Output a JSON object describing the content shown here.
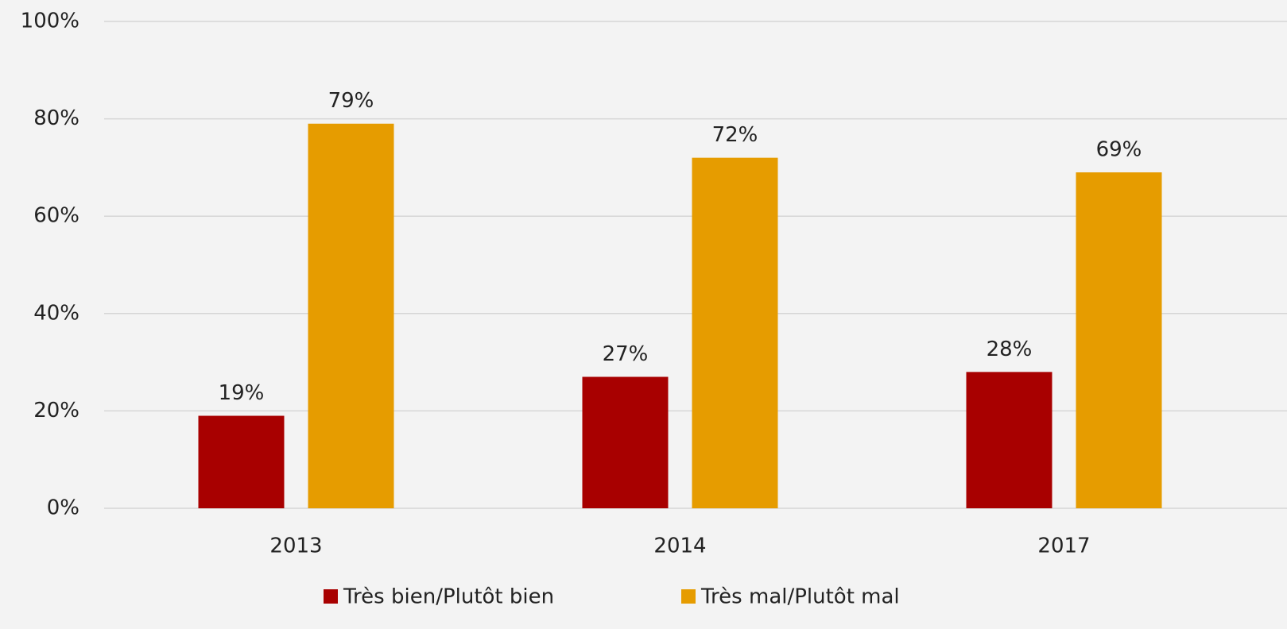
{
  "chart_data": {
    "type": "bar",
    "categories": [
      "2013",
      "2014",
      "2017"
    ],
    "series": [
      {
        "name": "Très bien/Plutôt bien",
        "color": "#a80000",
        "values": [
          19,
          27,
          28
        ],
        "value_labels": [
          "19%",
          "27%",
          "28%"
        ]
      },
      {
        "name": "Très mal/Plutôt mal",
        "color": "#e69c00",
        "values": [
          79,
          72,
          69
        ],
        "value_labels": [
          "79%",
          "72%",
          "69%"
        ]
      }
    ],
    "ylim": [
      0,
      100
    ],
    "yticks": [
      {
        "value": 0,
        "label": "0%"
      },
      {
        "value": 20,
        "label": "20%"
      },
      {
        "value": 40,
        "label": "40%"
      },
      {
        "value": 60,
        "label": "60%"
      },
      {
        "value": 80,
        "label": "80%"
      },
      {
        "value": 100,
        "label": "100%"
      }
    ],
    "grid": true
  }
}
